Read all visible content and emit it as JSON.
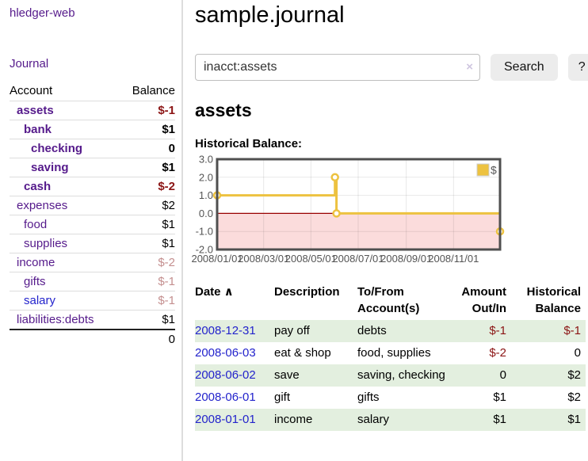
{
  "app": {
    "brand": "hledger-web",
    "nav_journal": "Journal"
  },
  "sidebar": {
    "header": {
      "account": "Account",
      "balance": "Balance"
    },
    "rows": [
      {
        "name": "assets",
        "balance": "$-1",
        "depth": 1,
        "bold": true,
        "name_color": "purple",
        "balance_tone": "neg"
      },
      {
        "name": "bank",
        "balance": "$1",
        "depth": 2,
        "bold": true,
        "name_color": "purple",
        "balance_tone": "pos"
      },
      {
        "name": "checking",
        "balance": "0",
        "depth": 3,
        "bold": true,
        "name_color": "purple",
        "balance_tone": "pos"
      },
      {
        "name": "saving",
        "balance": "$1",
        "depth": 3,
        "bold": true,
        "name_color": "purple",
        "balance_tone": "pos"
      },
      {
        "name": "cash",
        "balance": "$-2",
        "depth": 2,
        "bold": true,
        "name_color": "purple",
        "balance_tone": "neg"
      },
      {
        "name": "expenses",
        "balance": "$2",
        "depth": 1,
        "bold": false,
        "name_color": "purple",
        "balance_tone": "pos"
      },
      {
        "name": "food",
        "balance": "$1",
        "depth": 2,
        "bold": false,
        "name_color": "purple",
        "balance_tone": "pos"
      },
      {
        "name": "supplies",
        "balance": "$1",
        "depth": 2,
        "bold": false,
        "name_color": "purple",
        "balance_tone": "pos"
      },
      {
        "name": "income",
        "balance": "$-2",
        "depth": 1,
        "bold": false,
        "name_color": "purple",
        "balance_tone": "neg-muted"
      },
      {
        "name": "gifts",
        "balance": "$-1",
        "depth": 2,
        "bold": false,
        "name_color": "purple",
        "balance_tone": "neg-muted"
      },
      {
        "name": "salary",
        "balance": "$-1",
        "depth": 2,
        "bold": false,
        "name_color": "blue",
        "balance_tone": "neg-muted"
      },
      {
        "name": "liabilities:debts",
        "balance": "$1",
        "depth": 1,
        "bold": false,
        "name_color": "purple",
        "balance_tone": "pos"
      }
    ],
    "total": "0"
  },
  "header": {
    "title": "sample.journal"
  },
  "search": {
    "value": "inacct:assets",
    "clear_icon": "×",
    "button": "Search",
    "help_button": "?"
  },
  "account_page": {
    "heading": "assets",
    "chart_label": "Historical Balance:"
  },
  "chart_data": {
    "type": "line",
    "step": true,
    "title": "Historical Balance",
    "series": [
      {
        "name": "$",
        "color": "#edc240",
        "points": [
          [
            "2008-01-01",
            1.0
          ],
          [
            "2008-06-01",
            2.0
          ],
          [
            "2008-06-03",
            0.0
          ],
          [
            "2008-12-31",
            -1.0
          ]
        ]
      }
    ],
    "x_range": [
      "2008-01-01",
      "2008-12-31"
    ],
    "ylim": [
      -2.0,
      3.0
    ],
    "y_ticks": [
      {
        "v": 3,
        "label": "3.0"
      },
      {
        "v": 2,
        "label": "2.0"
      },
      {
        "v": 1,
        "label": "1.0"
      },
      {
        "v": 0,
        "label": "0.0"
      },
      {
        "v": -1,
        "label": "-1.0"
      },
      {
        "v": -2,
        "label": "-2.0"
      }
    ],
    "x_ticks": [
      {
        "v": "2008-01-01",
        "label": "2008/01/01"
      },
      {
        "v": "2008-03-01",
        "label": "2008/03/01"
      },
      {
        "v": "2008-05-01",
        "label": "2008/05/01"
      },
      {
        "v": "2008-07-01",
        "label": "2008/07/01"
      },
      {
        "v": "2008-09-01",
        "label": "2008/09/01"
      },
      {
        "v": "2008-11-01",
        "label": "2008/11/01"
      }
    ],
    "grid": true,
    "legend_position": "top-right",
    "negative_region_color": "#fbdcdc",
    "zero_line_color": "#990000",
    "border_color": "#4f4f4f",
    "tick_label_color": "#545454"
  },
  "register": {
    "columns": [
      {
        "label": "Date",
        "sortable": true,
        "sort_icon": "∧",
        "align": "left"
      },
      {
        "label": "Description",
        "align": "left"
      },
      {
        "label": "To/From Account(s)",
        "align": "left"
      },
      {
        "label": "Amount Out/In",
        "align": "right"
      },
      {
        "label": "Historical Balance",
        "align": "right"
      }
    ],
    "rows": [
      {
        "date": "2008-12-31",
        "description": "pay off",
        "accounts": "debts",
        "amount": "$-1",
        "balance": "$-1"
      },
      {
        "date": "2008-06-03",
        "description": "eat & shop",
        "accounts": "food, supplies",
        "amount": "$-2",
        "balance": "0"
      },
      {
        "date": "2008-06-02",
        "description": "save",
        "accounts": "saving, checking",
        "amount": "0",
        "balance": "$2"
      },
      {
        "date": "2008-06-01",
        "description": "gift",
        "accounts": "gifts",
        "amount": "$1",
        "balance": "$2"
      },
      {
        "date": "2008-01-01",
        "description": "income",
        "accounts": "salary",
        "amount": "$1",
        "balance": "$1"
      }
    ]
  }
}
